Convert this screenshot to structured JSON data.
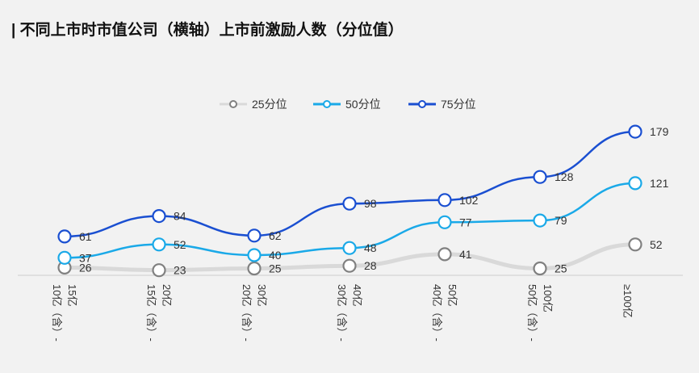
{
  "chart_data": {
    "type": "line",
    "title": "| 不同上市时市值公司（横轴）上市前激励人数（分位值）",
    "categories": [
      [
        "10亿（含）-",
        "15亿"
      ],
      [
        "15亿（含）-",
        "20亿"
      ],
      [
        "20亿（含）-",
        "30亿"
      ],
      [
        "30亿（含）-",
        "40亿"
      ],
      [
        "40亿（含）-",
        "50亿"
      ],
      [
        "50亿（含）-",
        "100亿"
      ],
      [
        "≥100亿"
      ]
    ],
    "series": [
      {
        "name": "25分位",
        "color": "#d9d9d9",
        "marker_stroke": "#808080",
        "values": [
          26,
          23,
          25,
          28,
          41,
          25,
          52
        ]
      },
      {
        "name": "50分位",
        "color": "#1aa9e8",
        "marker_stroke": "#1aa9e8",
        "values": [
          37,
          52,
          40,
          48,
          77,
          79,
          121
        ]
      },
      {
        "name": "75分位",
        "color": "#1a4fd1",
        "marker_stroke": "#1a4fd1",
        "values": [
          61,
          84,
          62,
          98,
          102,
          128,
          179
        ]
      }
    ],
    "ylim": [
      0,
      190
    ],
    "xlabel": "",
    "ylabel": "",
    "legend_position": "top-center",
    "grid": false
  }
}
